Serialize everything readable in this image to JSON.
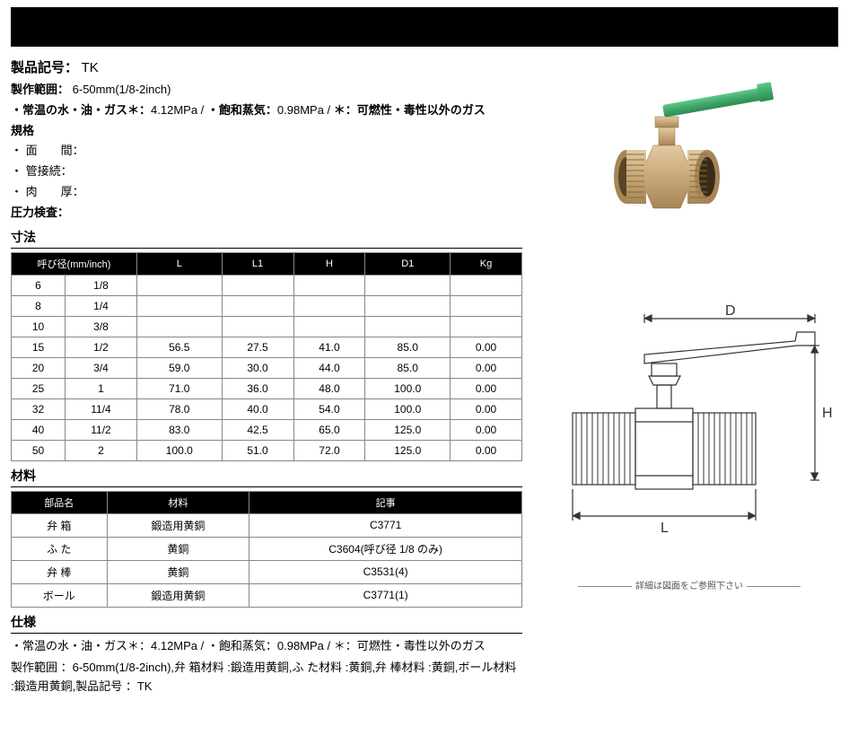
{
  "header": {
    "product_code_label": "製品記号：",
    "product_code": "TK",
    "range_label": "製作範囲：",
    "range_value": "6-50mm(1/8-2inch)",
    "pressure_line_1": "・常温の水・油・ガス＊：",
    "pressure_val_1": "4.12MPa / ",
    "pressure_line_2": "・飽和蒸気：",
    "pressure_val_2": "0.98MPa / ",
    "pressure_line_3": "＊：可燃性・毒性以外のガス",
    "spec_header": "規格",
    "spec_face": "・ 面　　間：",
    "spec_conn": "・ 管接続：",
    "spec_thick": "・ 肉　　厚：",
    "pressure_test": "圧力検査："
  },
  "dim": {
    "title": "寸法",
    "headers": [
      "呼び径(mm/inch)",
      "L",
      "L1",
      "H",
      "D1",
      "Kg"
    ],
    "rows": [
      {
        "mm": "6",
        "in": "1/8",
        "L": "",
        "L1": "",
        "H": "",
        "D1": "",
        "Kg": ""
      },
      {
        "mm": "8",
        "in": "1/4",
        "L": "",
        "L1": "",
        "H": "",
        "D1": "",
        "Kg": ""
      },
      {
        "mm": "10",
        "in": "3/8",
        "L": "",
        "L1": "",
        "H": "",
        "D1": "",
        "Kg": ""
      },
      {
        "mm": "15",
        "in": "1/2",
        "L": "56.5",
        "L1": "27.5",
        "H": "41.0",
        "D1": "85.0",
        "Kg": "0.00"
      },
      {
        "mm": "20",
        "in": "3/4",
        "L": "59.0",
        "L1": "30.0",
        "H": "44.0",
        "D1": "85.0",
        "Kg": "0.00"
      },
      {
        "mm": "25",
        "in": "1",
        "L": "71.0",
        "L1": "36.0",
        "H": "48.0",
        "D1": "100.0",
        "Kg": "0.00"
      },
      {
        "mm": "32",
        "in": "11/4",
        "L": "78.0",
        "L1": "40.0",
        "H": "54.0",
        "D1": "100.0",
        "Kg": "0.00"
      },
      {
        "mm": "40",
        "in": "11/2",
        "L": "83.0",
        "L1": "42.5",
        "H": "65.0",
        "D1": "125.0",
        "Kg": "0.00"
      },
      {
        "mm": "50",
        "in": "2",
        "L": "100.0",
        "L1": "51.0",
        "H": "72.0",
        "D1": "125.0",
        "Kg": "0.00"
      }
    ]
  },
  "mat": {
    "title": "材料",
    "headers": [
      "部品名",
      "材料",
      "記事"
    ],
    "rows": [
      {
        "part": "弁 箱",
        "material": "鍛造用黄銅",
        "note": "C3771"
      },
      {
        "part": "ふ た",
        "material": "黄銅",
        "note": "C3604(呼び径 1/8 のみ)"
      },
      {
        "part": "弁 棒",
        "material": "黄銅",
        "note": "C3531(4)"
      },
      {
        "part": "ボール",
        "material": "鍛造用黄銅",
        "note": "C3771(1)"
      }
    ]
  },
  "spec": {
    "title": "仕様",
    "line1": "・常温の水・油・ガス＊：4.12MPa / ・飽和蒸気：0.98MPa / ＊：可燃性・毒性以外のガス",
    "line2": "製作範囲 ：6-50mm(1/8-2inch),弁 箱材料 :鍛造用黄銅,ふ た材料 :黄銅,弁 棒材料 :黄銅,ボール材料 :鍛造用黄銅,製品記号 ：TK"
  },
  "diagram": {
    "label_D": "D",
    "label_H": "H",
    "label_L": "L",
    "caption": "詳細は図面をご参照下さい"
  },
  "colors": {
    "handle": "#3fa869",
    "handle_rib": "#2e8a53",
    "brass": "#c9a878",
    "brass_dark": "#a68556",
    "brass_light": "#e0cba3",
    "line": "#333333"
  }
}
